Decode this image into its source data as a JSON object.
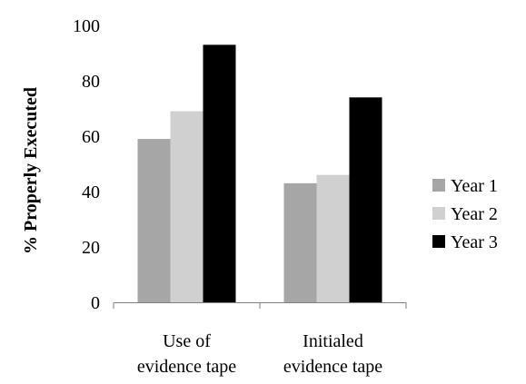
{
  "chart_data": {
    "type": "bar",
    "title": "",
    "xlabel": "",
    "ylabel": "% Properly Executed",
    "ylim": [
      0,
      100
    ],
    "yticks": [
      0,
      20,
      40,
      60,
      80,
      100
    ],
    "categories": [
      [
        "Use of",
        "evidence tape"
      ],
      [
        "Initialed",
        "evidence tape"
      ]
    ],
    "series": [
      {
        "name": "Year 1",
        "values": [
          59,
          43
        ],
        "color": "#a6a6a6"
      },
      {
        "name": "Year 2",
        "values": [
          69,
          46
        ],
        "color": "#d0d0d0"
      },
      {
        "name": "Year 3",
        "values": [
          93,
          74
        ],
        "color": "#000000"
      }
    ],
    "grid": false,
    "legend_position": "right"
  }
}
